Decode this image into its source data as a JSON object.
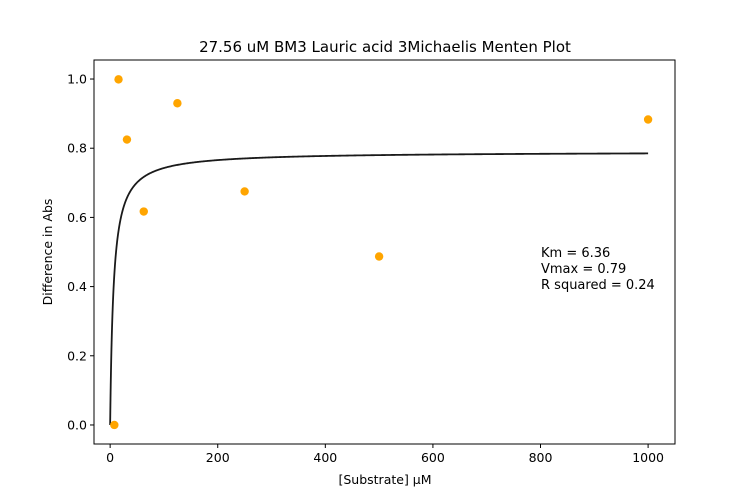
{
  "chart_data": {
    "type": "scatter",
    "title": "27.56 uM BM3 Lauric acid 3Michaelis Menten Plot",
    "xlabel": "[Substrate] μM",
    "ylabel": "Difference in Abs",
    "xlim": [
      -30,
      1050
    ],
    "ylim": [
      -0.055,
      1.055
    ],
    "x_ticks": [
      0,
      200,
      400,
      600,
      800,
      1000
    ],
    "x_tick_labels": [
      "0",
      "200",
      "400",
      "600",
      "800",
      "1000"
    ],
    "y_ticks": [
      0.0,
      0.2,
      0.4,
      0.6,
      0.8,
      1.0
    ],
    "y_tick_labels": [
      "0.0",
      "0.2",
      "0.4",
      "0.6",
      "0.8",
      "1.0"
    ],
    "grid": false,
    "series": [
      {
        "kind": "scatter",
        "color": "#ffa500",
        "x": [
          7.8,
          15.6,
          31.25,
          62.5,
          125,
          250,
          500,
          1000
        ],
        "y": [
          0.0,
          0.999,
          0.825,
          0.617,
          0.93,
          0.675,
          0.487,
          0.883
        ]
      },
      {
        "kind": "fit-line",
        "model": "michaelis-menten",
        "color": "#1a1a1a",
        "km": 6.36,
        "vmax": 0.79,
        "x_range": [
          0,
          1000
        ]
      }
    ],
    "annotations": [
      "Km = 6.36",
      "Vmax = 0.79",
      "R squared = 0.24"
    ]
  }
}
